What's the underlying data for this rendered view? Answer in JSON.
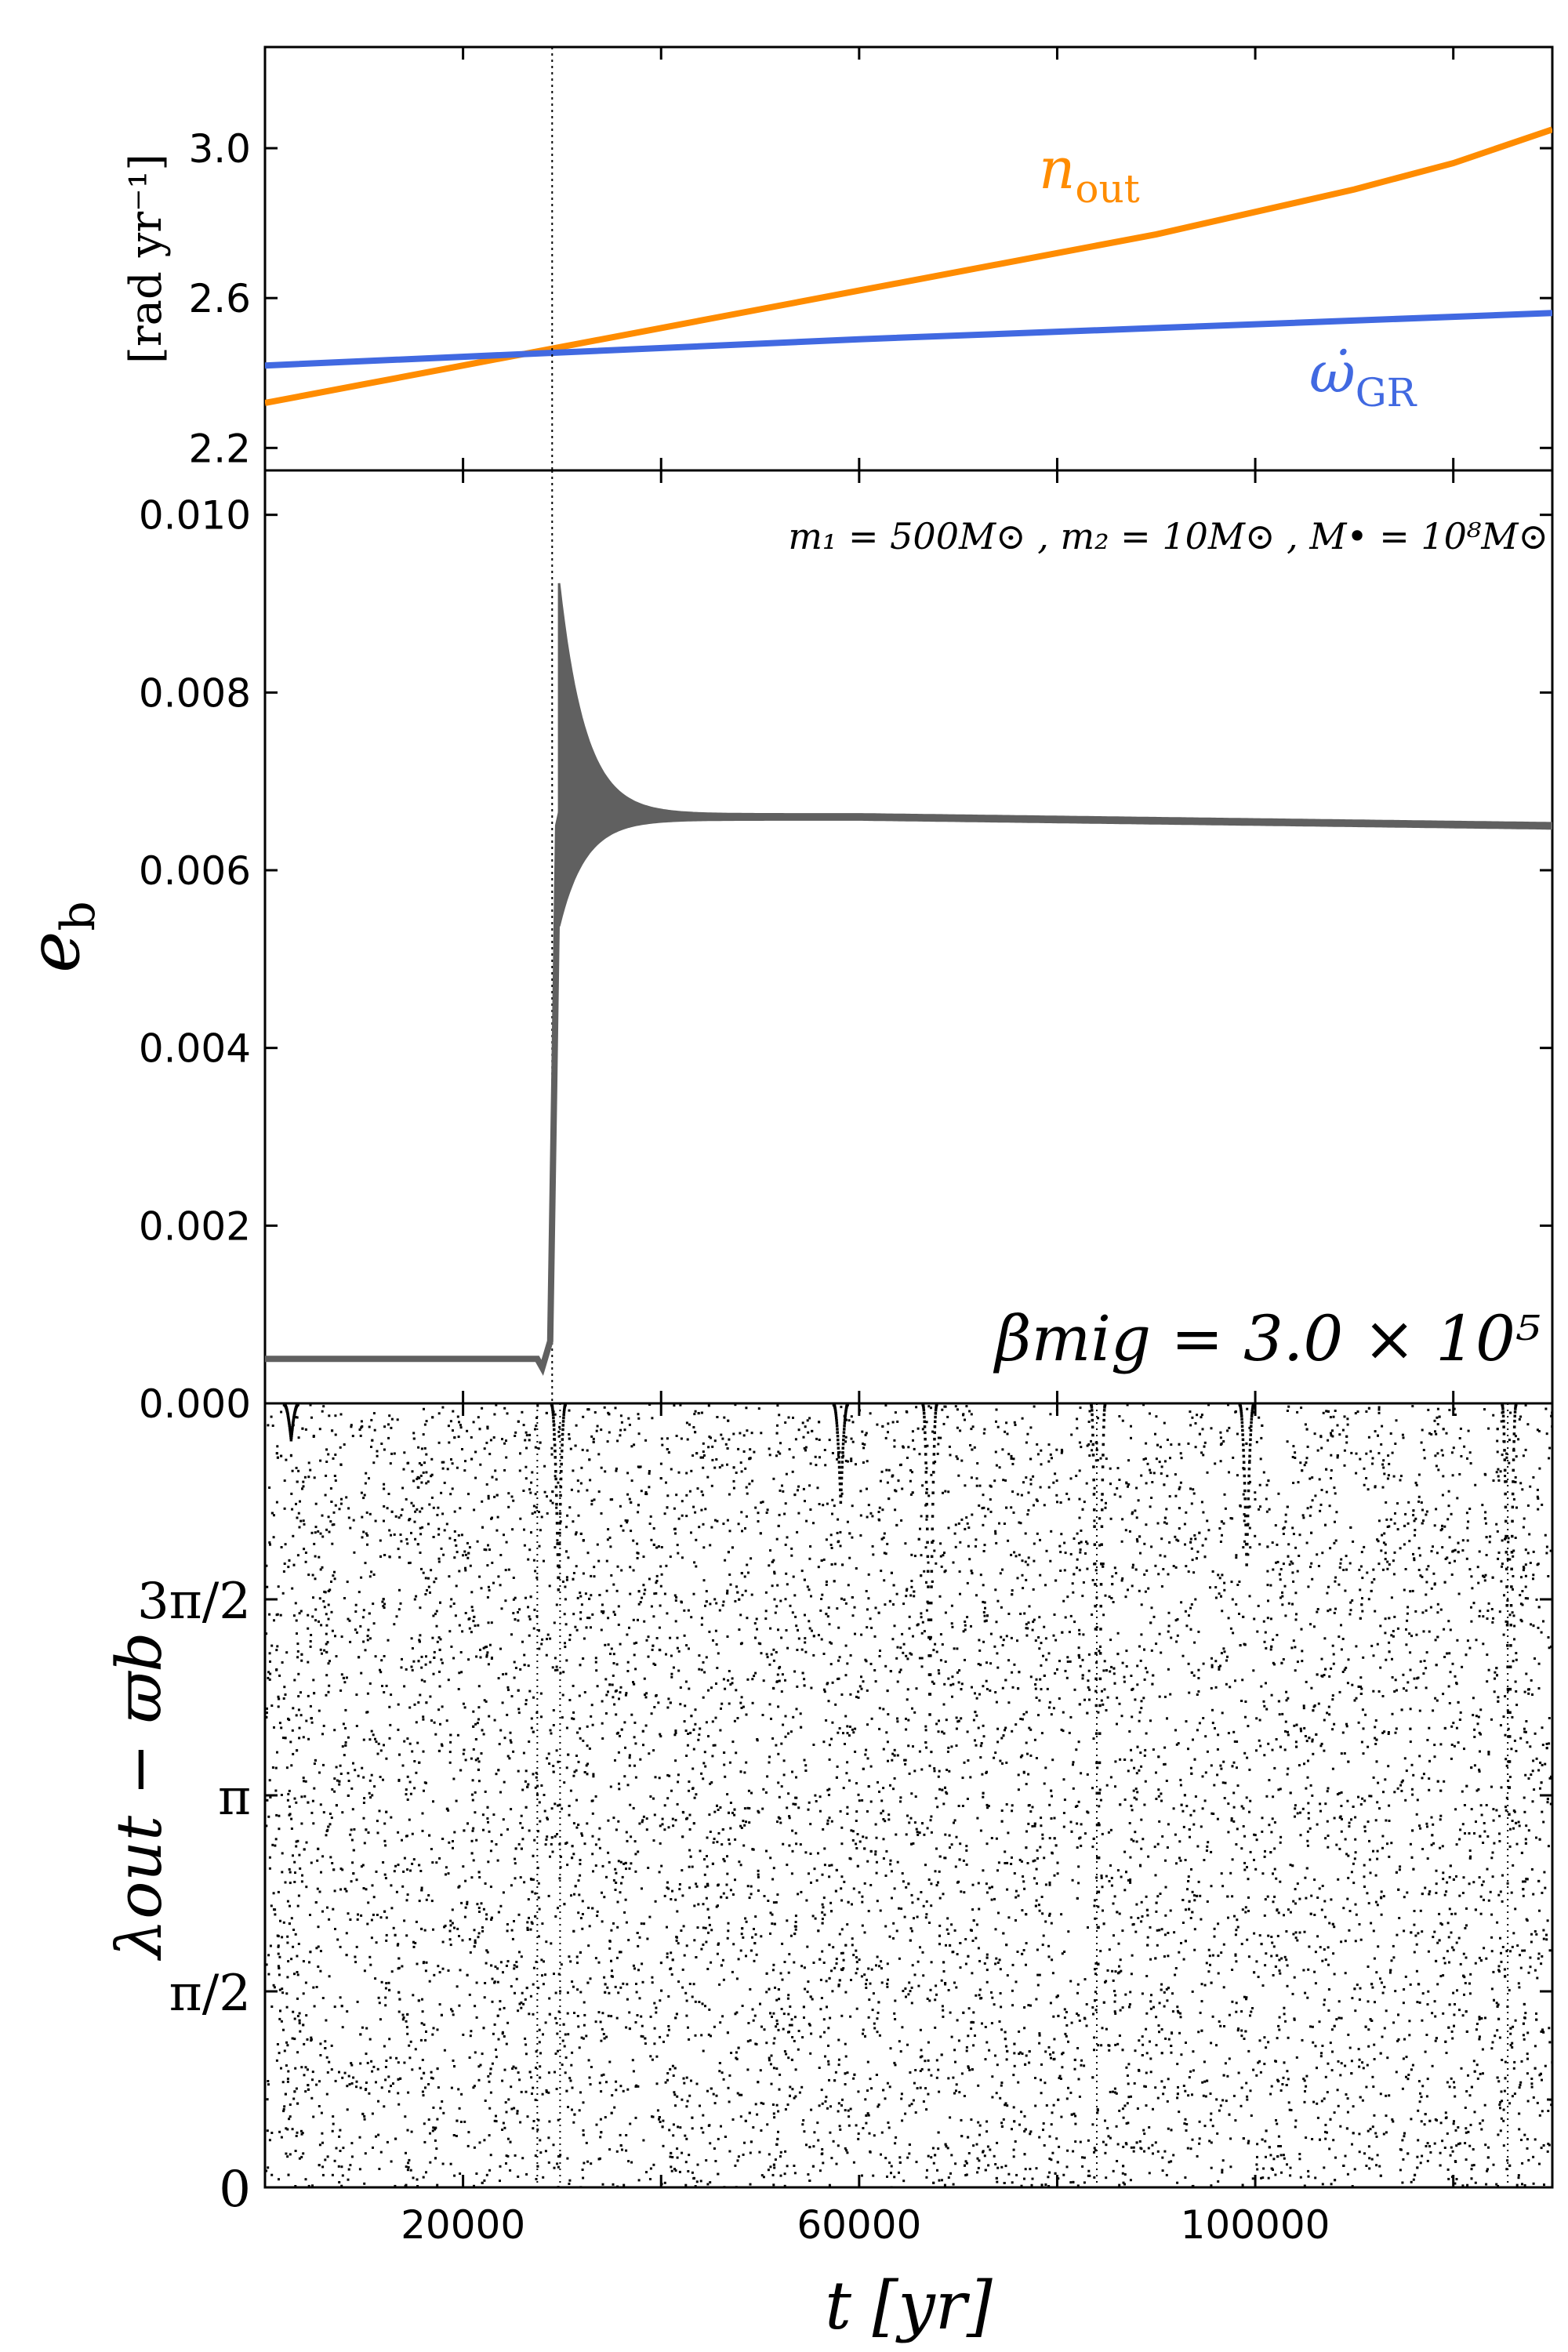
{
  "colors": {
    "n_out": "#ff8c00",
    "omega_gr": "#4169e1",
    "eccentricity": "#606060",
    "scatter": "#000000",
    "vline": "#000000"
  },
  "chart_data": [
    {
      "type": "line",
      "panel": "top",
      "ylabel": "[rad yr⁻¹]",
      "xlim": [
        0,
        130000
      ],
      "ylim": [
        2.14,
        3.27
      ],
      "yticks": [
        "2.2",
        "2.6",
        "3.0"
      ],
      "ytick_values": [
        2.2,
        2.6,
        3.0
      ],
      "series": [
        {
          "name": "n_out",
          "label_main": "n",
          "label_sub": "out",
          "color": "#ff8c00",
          "x": [
            0,
            10000,
            20000,
            30000,
            40000,
            50000,
            60000,
            70000,
            80000,
            90000,
            100000,
            110000,
            120000,
            130000
          ],
          "y": [
            2.32,
            2.37,
            2.42,
            2.47,
            2.52,
            2.57,
            2.62,
            2.67,
            2.72,
            2.77,
            2.83,
            2.89,
            2.96,
            3.05
          ]
        },
        {
          "name": "omega_dot_GR",
          "label_main": "ω̇",
          "label_sub": "GR",
          "color": "#4169e1",
          "x": [
            0,
            30000,
            60000,
            90000,
            130000
          ],
          "y": [
            2.42,
            2.455,
            2.49,
            2.52,
            2.56
          ]
        }
      ],
      "vline_x": 29000
    },
    {
      "type": "line",
      "panel": "middle",
      "ylabel": "e",
      "ylabel_sub": "b",
      "xlim": [
        0,
        130000
      ],
      "ylim": [
        0.0,
        0.0105
      ],
      "yticks": [
        "0.000",
        "0.002",
        "0.004",
        "0.006",
        "0.008",
        "0.010"
      ],
      "ytick_values": [
        0.0,
        0.002,
        0.004,
        0.006,
        0.008,
        0.01
      ],
      "annotation_masses": "m₁ = 500M⊙ , m₂ = 10M⊙ , M• = 10⁸M⊙",
      "annotation_beta": "βmig = 3.0 × 10⁵",
      "series": [
        {
          "name": "e_b",
          "color": "#606060",
          "x": [
            0,
            10000,
            20000,
            25000,
            27500,
            28000,
            28800,
            29200,
            29600,
            30000,
            32000,
            35000,
            40000,
            50000,
            60000,
            80000,
            100000,
            130000
          ],
          "y": [
            0.0005,
            0.0005,
            0.0005,
            0.0005,
            0.0005,
            0.0004,
            0.0007,
            0.0035,
            0.0065,
            0.0067,
            0.0068,
            0.0067,
            0.0066,
            0.0066,
            0.0066,
            0.0066,
            0.00655,
            0.0065
          ],
          "oscillation": {
            "start_x": 29700,
            "center": 0.0066,
            "peak_upper": 0.0092,
            "peak_lower": 0.0054,
            "late_amplitude": 3e-05
          }
        }
      ],
      "vline_x": 29000
    },
    {
      "type": "scatter",
      "panel": "bottom",
      "ylabel": "λout − ϖb",
      "xlabel": "t [yr]",
      "xlim": [
        0,
        130000
      ],
      "ylim": [
        0,
        6.283
      ],
      "xticks": [
        "20000",
        "60000",
        "100000"
      ],
      "xtick_values": [
        20000,
        60000,
        100000
      ],
      "yticks": [
        "0",
        "π/2",
        "π",
        "3π/2"
      ],
      "ytick_values": [
        0,
        1.5708,
        3.1416,
        4.7124
      ],
      "description_points": "dense near-uniform circulating resonant angle with deep cusps near t≈29000, 58000, 67000, 84000, 99000, 125000",
      "cusps": [
        {
          "x": 2500,
          "depth": 6.0
        },
        {
          "x": 29500,
          "depth": 4.8
        },
        {
          "x": 58000,
          "depth": 5.5
        },
        {
          "x": 67000,
          "depth": 3.8
        },
        {
          "x": 84000,
          "depth": 1.8
        },
        {
          "x": 99000,
          "depth": 5.0
        },
        {
          "x": 125500,
          "depth": 3.0
        }
      ],
      "vlines_x": [
        27500,
        29800,
        84000,
        125500
      ]
    }
  ]
}
